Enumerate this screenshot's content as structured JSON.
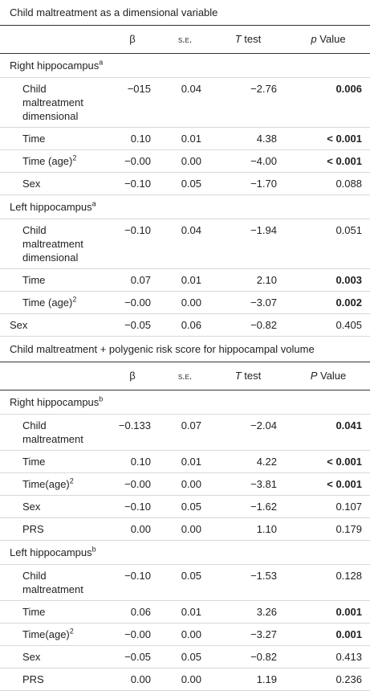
{
  "sections": [
    {
      "title": "Child maltreatment as a dimensional variable",
      "header": [
        {
          "text": "β"
        },
        {
          "text": "s.e."
        },
        {
          "em": "T",
          "text": " test"
        },
        {
          "em": "p",
          "text": " Value"
        }
      ],
      "groups": [
        {
          "label": "Right hippocampus",
          "sup": "a",
          "rows": [
            {
              "label": "Child maltreatment dimensional",
              "values": [
                "−015",
                "0.04",
                "−2.76",
                "0.006"
              ],
              "bold": true
            },
            {
              "label": "Time",
              "values": [
                "0.10",
                "0.01",
                "4.38",
                "< 0.001"
              ],
              "bold": true
            },
            {
              "label": "Time (age)",
              "sup": "2",
              "values": [
                "−0.00",
                "0.00",
                "−4.00",
                "< 0.001"
              ],
              "bold": true
            },
            {
              "label": "Sex",
              "values": [
                "−0.10",
                "0.05",
                "−1.70",
                "0.088"
              ]
            }
          ]
        },
        {
          "label": "Left hippocampus",
          "sup": "a",
          "rows": [
            {
              "label": "Child maltreatment dimensional",
              "values": [
                "−0.10",
                "0.04",
                "−1.94",
                "0.051"
              ]
            },
            {
              "label": "Time",
              "values": [
                "0.07",
                "0.01",
                "2.10",
                "0.003"
              ],
              "bold": true
            },
            {
              "label": "Time (age)",
              "sup": "2",
              "values": [
                "−0.00",
                "0.00",
                "−3.07",
                "0.002"
              ],
              "bold": true
            },
            {
              "label": "Sex",
              "values": [
                "−0.05",
                "0.06",
                "−0.82",
                "0.405"
              ],
              "flush": true
            }
          ]
        }
      ]
    },
    {
      "title": "Child maltreatment + polygenic risk score for hippocampal volume",
      "header": [
        {
          "text": "β"
        },
        {
          "text": "s.e."
        },
        {
          "em": "T",
          "text": " test"
        },
        {
          "em": "P",
          "text": " Value"
        }
      ],
      "groups": [
        {
          "label": "Right hippocampus",
          "sup": "b",
          "rows": [
            {
              "label": "Child maltreatment",
              "values": [
                "−0.133",
                "0.07",
                "−2.04",
                "0.041"
              ],
              "bold": true
            },
            {
              "label": "Time",
              "values": [
                "0.10",
                "0.01",
                "4.22",
                "< 0.001"
              ],
              "bold": true
            },
            {
              "label": "Time(age)",
              "sup": "2",
              "values": [
                "−0.00",
                "0.00",
                "−3.81",
                "< 0.001"
              ],
              "bold": true
            },
            {
              "label": "Sex",
              "values": [
                "−0.10",
                "0.05",
                "−1.62",
                "0.107"
              ]
            },
            {
              "label": "PRS",
              "values": [
                "0.00",
                "0.00",
                "1.10",
                "0.179"
              ]
            }
          ]
        },
        {
          "label": "Left hippocampus",
          "sup": "b",
          "rows": [
            {
              "label": "Child maltreatment",
              "values": [
                "−0.10",
                "0.05",
                "−1.53",
                "0.128"
              ]
            },
            {
              "label": "Time",
              "values": [
                "0.06",
                "0.01",
                "3.26",
                "0.001"
              ],
              "bold": true
            },
            {
              "label": "Time(age)",
              "sup": "2",
              "values": [
                "−0.00",
                "0.00",
                "−3.27",
                "0.001"
              ],
              "bold": true
            },
            {
              "label": "Sex",
              "values": [
                "−0.05",
                "0.05",
                "−0.82",
                "0.413"
              ]
            },
            {
              "label": "PRS",
              "values": [
                "0.00",
                "0.00",
                "1.19",
                "0.236"
              ]
            }
          ]
        }
      ]
    }
  ]
}
